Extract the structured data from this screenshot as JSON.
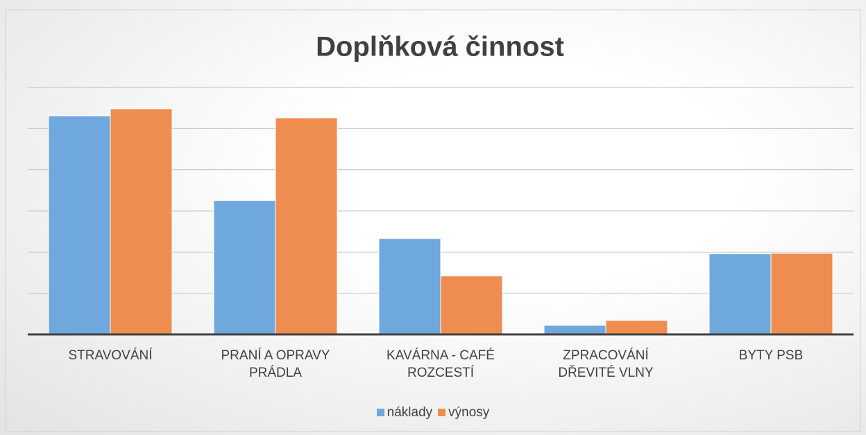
{
  "chart_data": {
    "type": "bar",
    "title": "Doplňková činnost",
    "categories": [
      "STRAVOVÁNÍ",
      "PRANÍ A OPRAVY PRÁDLA",
      "KAVÁRNA - CAFÉ ROZCESTÍ",
      "ZPRACOVÁNÍ DŘEVITÉ VLNY",
      "BYTY PSB"
    ],
    "series": [
      {
        "name": "náklady",
        "color": "#6fa8dc",
        "values": [
          5.31,
          3.25,
          2.33,
          0.22,
          1.96
        ]
      },
      {
        "name": "výnosy",
        "color": "#ef8c4f",
        "values": [
          5.48,
          5.26,
          1.42,
          0.34,
          1.97
        ]
      }
    ],
    "ylim": [
      0,
      6
    ],
    "yticks": [
      0,
      1,
      2,
      3,
      4,
      5,
      6
    ],
    "grid": true,
    "legend": "bottom"
  }
}
